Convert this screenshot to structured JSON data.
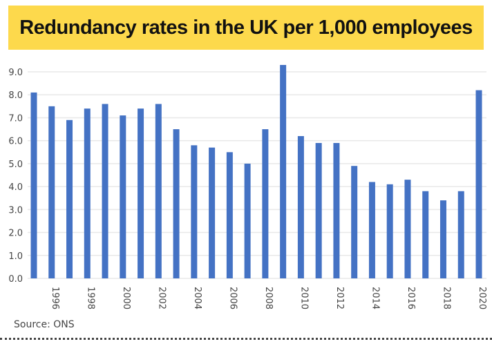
{
  "banner": {
    "title": "Redundancy rates in the UK per 1,000 employees",
    "color": "#fdd94c"
  },
  "footer": {
    "source": "Source: ONS"
  },
  "chart_data": {
    "type": "bar",
    "title": "Redundancy rates in the UK per 1,000 employees",
    "xlabel": "",
    "ylabel": "",
    "categories": [
      "1995",
      "1996",
      "1997",
      "1998",
      "1999",
      "2000",
      "2001",
      "2002",
      "2003",
      "2004",
      "2005",
      "2006",
      "2007",
      "2008",
      "2009",
      "2010",
      "2011",
      "2012",
      "2013",
      "2014",
      "2015",
      "2016",
      "2017",
      "2018",
      "2019",
      "2020"
    ],
    "values": [
      8.1,
      7.5,
      6.9,
      7.4,
      7.6,
      7.1,
      7.4,
      7.6,
      6.5,
      5.8,
      5.7,
      5.5,
      5.0,
      6.5,
      9.3,
      6.2,
      5.9,
      5.9,
      4.9,
      4.2,
      4.1,
      4.3,
      3.8,
      3.4,
      3.8,
      8.2
    ],
    "x_tick_labels": [
      "1996",
      "1998",
      "2000",
      "2002",
      "2004",
      "2006",
      "2008",
      "2010",
      "2012",
      "2014",
      "2016",
      "2018",
      "2020"
    ],
    "y_tick_labels": [
      "0.0",
      "1.0",
      "2.0",
      "3.0",
      "4.0",
      "5.0",
      "6.0",
      "7.0",
      "8.0",
      "9.0"
    ],
    "ylim": [
      0,
      9
    ],
    "grid": true,
    "legend": "none",
    "bar_color": "#4472c4",
    "grid_color": "#e8e8e8"
  }
}
